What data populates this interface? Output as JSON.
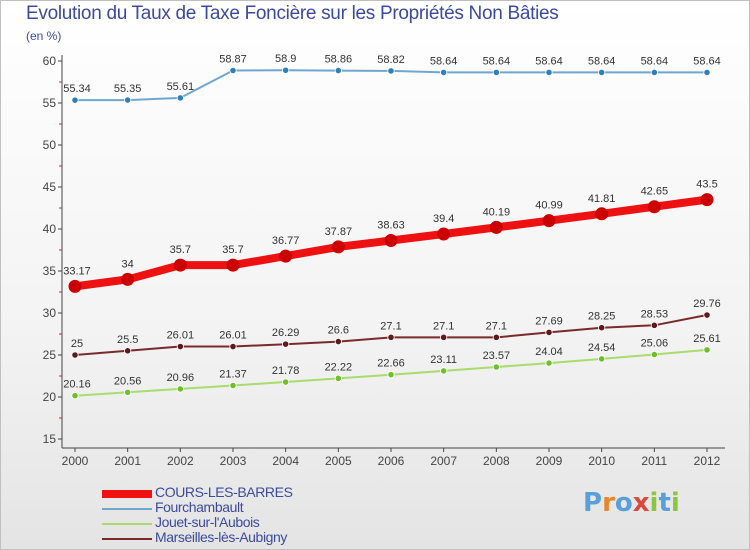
{
  "title": "Evolution du Taux de Taxe Foncière sur les Propriétés Non Bâties",
  "unit": "(en %)",
  "logo": {
    "text": "Proxiti",
    "letters": [
      "P",
      "r",
      "o",
      "x",
      "i",
      "t",
      "i"
    ],
    "colors": [
      "#5aa0d8",
      "#e8862a",
      "#5aa0d8",
      "#d94a3a",
      "#8cc63f",
      "#5aa0d8",
      "#8cc63f"
    ]
  },
  "chart_data": {
    "type": "line",
    "title": "Evolution du Taux de Taxe Foncière sur les Propriétés Non Bâties",
    "ylabel": "(en %)",
    "xlabel": "",
    "ylim": [
      15,
      60
    ],
    "yticks": [
      "15",
      "20",
      "25",
      "30",
      "35",
      "40",
      "45",
      "50",
      "55",
      "60"
    ],
    "x": [
      "2000",
      "2001",
      "2002",
      "2003",
      "2004",
      "2005",
      "2006",
      "2007",
      "2008",
      "2009",
      "2010",
      "2011",
      "2012"
    ],
    "series": [
      {
        "name": "COURS-LES-BARRES",
        "color": "#ee1111",
        "marker": "#cc0000",
        "width": 8,
        "legend_bold": true,
        "values": [
          33.17,
          34,
          35.7,
          35.7,
          36.77,
          37.87,
          38.63,
          39.4,
          40.19,
          40.99,
          41.81,
          42.65,
          43.5
        ],
        "labels": [
          "33.17",
          "34",
          "35.7",
          "35.7",
          "36.77",
          "37.87",
          "38.63",
          "39.4",
          "40.19",
          "40.99",
          "41.81",
          "42.65",
          "43.5"
        ]
      },
      {
        "name": "Fourchambault",
        "color": "#6fa6d0",
        "marker": "#2f7fb8",
        "width": 2,
        "values": [
          55.34,
          55.35,
          55.61,
          58.87,
          58.9,
          58.86,
          58.82,
          58.64,
          58.64,
          58.64,
          58.64,
          58.64,
          58.64
        ],
        "labels": [
          "55.34",
          "55.35",
          "55.61",
          "58.87",
          "58.9",
          "58.86",
          "58.82",
          "58.64",
          "58.64",
          "58.64",
          "58.64",
          "58.64",
          "58.64"
        ]
      },
      {
        "name": "Jouet-sur-l'Aubois",
        "color": "#a8dc6c",
        "marker": "#6fbf2a",
        "width": 2,
        "values": [
          20.16,
          20.56,
          20.96,
          21.37,
          21.78,
          22.22,
          22.66,
          23.11,
          23.57,
          24.04,
          24.54,
          25.06,
          25.61
        ],
        "labels": [
          "20.16",
          "20.56",
          "20.96",
          "21.37",
          "21.78",
          "22.22",
          "22.66",
          "23.11",
          "23.57",
          "24.04",
          "24.54",
          "25.06",
          "25.61"
        ]
      },
      {
        "name": "Marseilles-lès-Aubigny",
        "color": "#7a2a2a",
        "marker": "#5c1a1a",
        "width": 2,
        "values": [
          25,
          25.5,
          26.01,
          26.01,
          26.29,
          26.6,
          27.1,
          27.1,
          27.1,
          27.69,
          28.25,
          28.53,
          29.76
        ],
        "labels": [
          "25",
          "25.5",
          "26.01",
          "26.01",
          "26.29",
          "26.6",
          "27.1",
          "27.1",
          "27.1",
          "27.69",
          "28.25",
          "28.53",
          "29.76"
        ]
      }
    ]
  }
}
